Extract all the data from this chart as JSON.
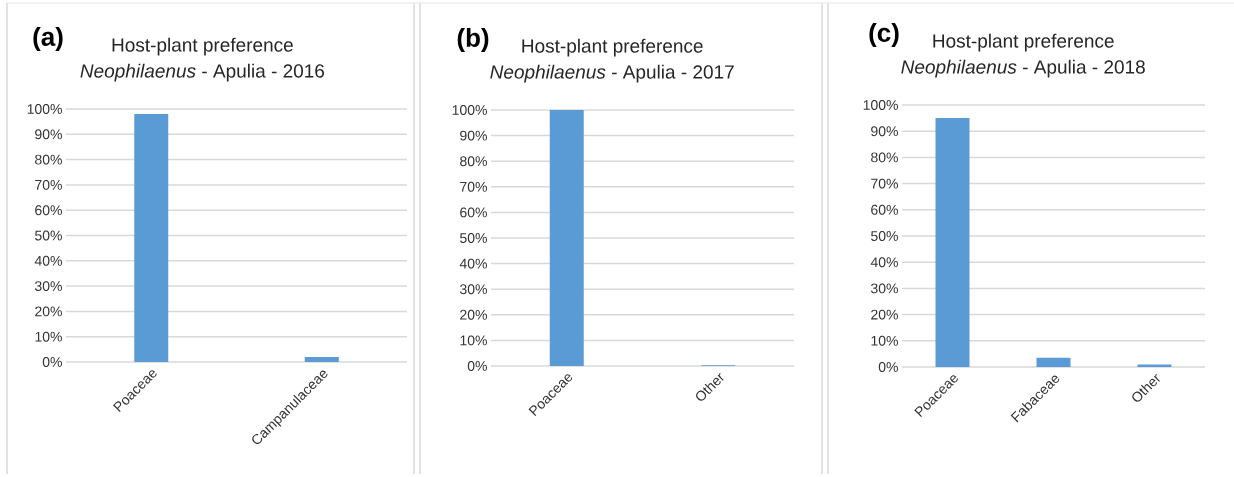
{
  "chart_data": [
    {
      "type": "bar",
      "title": "Host-plant preference",
      "subtitle": "*Neophilaenus* - Apulia - 2016",
      "annotations": [
        "(a)"
      ],
      "categories": [
        "Poaceae",
        "Campanulaceae"
      ],
      "values": [
        98,
        2
      ],
      "color": "#5b9bd5",
      "ylim": [
        0,
        100
      ],
      "yticks": [
        {
          "value": 0,
          "label": "0%"
        },
        {
          "value": 10,
          "label": "10%"
        },
        {
          "value": 20,
          "label": "20%"
        },
        {
          "value": 30,
          "label": "30%"
        },
        {
          "value": 40,
          "label": "40%"
        },
        {
          "value": 50,
          "label": "50%"
        },
        {
          "value": 60,
          "label": "60%"
        },
        {
          "value": 70,
          "label": "70%"
        },
        {
          "value": 80,
          "label": "80%"
        },
        {
          "value": 90,
          "label": "90%"
        },
        {
          "value": 100,
          "label": "100%"
        }
      ],
      "grid": "y"
    },
    {
      "type": "bar",
      "title": "Host-plant preference",
      "subtitle": "*Neophilaenus* - Apulia - 2017",
      "annotations": [
        "(b)"
      ],
      "categories": [
        "Poaceae",
        "Other"
      ],
      "values": [
        100,
        0.3
      ],
      "color": "#5b9bd5",
      "ylim": [
        0,
        100
      ],
      "yticks": [
        {
          "value": 0,
          "label": "0%"
        },
        {
          "value": 10,
          "label": "10%"
        },
        {
          "value": 20,
          "label": "20%"
        },
        {
          "value": 30,
          "label": "30%"
        },
        {
          "value": 40,
          "label": "40%"
        },
        {
          "value": 50,
          "label": "50%"
        },
        {
          "value": 60,
          "label": "60%"
        },
        {
          "value": 70,
          "label": "70%"
        },
        {
          "value": 80,
          "label": "80%"
        },
        {
          "value": 90,
          "label": "90%"
        },
        {
          "value": 100,
          "label": "100%"
        }
      ],
      "grid": "y"
    },
    {
      "type": "bar",
      "title": "Host-plant preference",
      "subtitle": "*Neophilaenus* - Apulia - 2018",
      "annotations": [
        "(c)"
      ],
      "categories": [
        "Poaceae",
        "Fabaceae",
        "Other"
      ],
      "values": [
        95,
        3.5,
        1
      ],
      "color": "#5b9bd5",
      "ylim": [
        0,
        100
      ],
      "yticks": [
        {
          "value": 0,
          "label": "0%"
        },
        {
          "value": 10,
          "label": "10%"
        },
        {
          "value": 20,
          "label": "20%"
        },
        {
          "value": 30,
          "label": "30%"
        },
        {
          "value": 40,
          "label": "40%"
        },
        {
          "value": 50,
          "label": "50%"
        },
        {
          "value": 60,
          "label": "60%"
        },
        {
          "value": 70,
          "label": "70%"
        },
        {
          "value": 80,
          "label": "80%"
        },
        {
          "value": 90,
          "label": "90%"
        },
        {
          "value": 100,
          "label": "100%"
        }
      ],
      "grid": "y"
    }
  ]
}
